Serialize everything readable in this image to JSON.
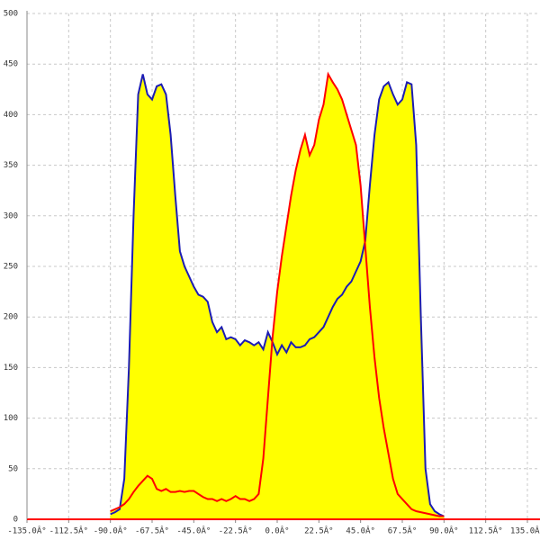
{
  "chart_data": {
    "type": "area",
    "x": [
      -90,
      -87.5,
      -85,
      -82.5,
      -80,
      -77.5,
      -75,
      -72.5,
      -70,
      -67.5,
      -65,
      -62.5,
      -60,
      -57.5,
      -55,
      -52.5,
      -50,
      -47.5,
      -45,
      -42.5,
      -40,
      -37.5,
      -35,
      -32.5,
      -30,
      -27.5,
      -25,
      -22.5,
      -20,
      -17.5,
      -15,
      -12.5,
      -10,
      -7.5,
      -5,
      -2.5,
      0,
      2.5,
      5,
      7.5,
      10,
      12.5,
      15,
      17.5,
      20,
      22.5,
      25,
      27.5,
      30,
      32.5,
      35,
      37.5,
      40,
      42.5,
      45,
      47.5,
      50,
      52.5,
      55,
      57.5,
      60,
      62.5,
      65,
      67.5,
      70,
      72.5,
      75,
      77.5,
      80,
      82.5,
      85,
      87.5,
      90
    ],
    "series": [
      {
        "color": "#1c1cb4",
        "fill": "#ffff00",
        "values": [
          5,
          7,
          10,
          40,
          150,
          300,
          420,
          440,
          420,
          415,
          428,
          430,
          420,
          380,
          320,
          265,
          250,
          240,
          230,
          222,
          220,
          215,
          195,
          185,
          190,
          178,
          180,
          178,
          172,
          177,
          175,
          172,
          175,
          168,
          185,
          175,
          163,
          172,
          165,
          175,
          170,
          170,
          172,
          178,
          180,
          185,
          190,
          200,
          210,
          218,
          222,
          230,
          235,
          245,
          255,
          275,
          330,
          380,
          415,
          428,
          432,
          420,
          410,
          415,
          432,
          430,
          370,
          200,
          50,
          15,
          8,
          5,
          3
        ]
      },
      {
        "color": "#ff0000",
        "fill": "#ffff00",
        "values": [
          8,
          10,
          12,
          15,
          20,
          27,
          33,
          38,
          43,
          40,
          30,
          28,
          30,
          27,
          27,
          28,
          27,
          28,
          28,
          25,
          22,
          20,
          20,
          18,
          20,
          18,
          20,
          23,
          20,
          20,
          18,
          20,
          25,
          60,
          120,
          180,
          225,
          260,
          290,
          320,
          345,
          365,
          380,
          360,
          370,
          395,
          410,
          440,
          432,
          425,
          415,
          400,
          385,
          370,
          330,
          270,
          210,
          160,
          120,
          90,
          65,
          40,
          25,
          20,
          15,
          10,
          8,
          7,
          6,
          5,
          4,
          3,
          3
        ]
      }
    ],
    "xlim": [
      -135,
      135
    ],
    "ylim": [
      0,
      500
    ],
    "xticks": [
      {
        "value": -135,
        "label": "-135.0Â°"
      },
      {
        "value": -112.5,
        "label": "-112.5Â°"
      },
      {
        "value": -90,
        "label": "-90.0Â°"
      },
      {
        "value": -67.5,
        "label": "-67.5Â°"
      },
      {
        "value": -45,
        "label": "-45.0Â°"
      },
      {
        "value": -22.5,
        "label": "-22.5Â°"
      },
      {
        "value": 0,
        "label": "0.0Â°"
      },
      {
        "value": 22.5,
        "label": "22.5Â°"
      },
      {
        "value": 45,
        "label": "45.0Â°"
      },
      {
        "value": 67.5,
        "label": "67.5Â°"
      },
      {
        "value": 90,
        "label": "90.0Â°"
      },
      {
        "value": 112.5,
        "label": "112.5Â°"
      },
      {
        "value": 135,
        "label": "135.0Â°"
      }
    ],
    "yticks": [
      0,
      50,
      100,
      150,
      200,
      250,
      300,
      350,
      400,
      450,
      500
    ],
    "grid": true
  }
}
